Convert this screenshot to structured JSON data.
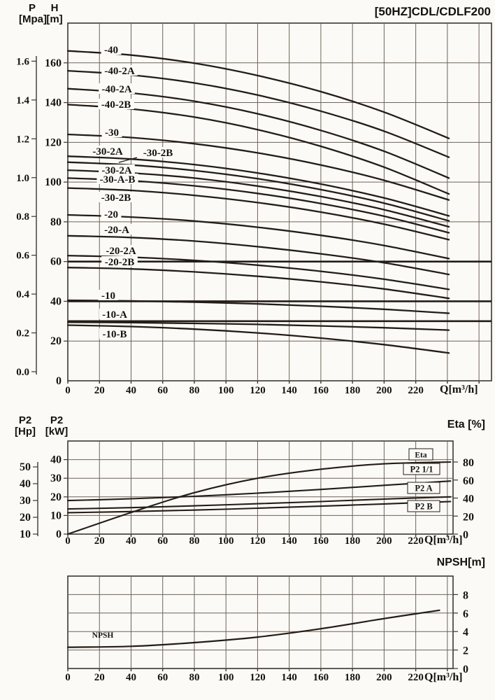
{
  "title": "[50HZ]CDL/CDLF200",
  "axes_headers": {
    "head_left_primary": {
      "sym": "P",
      "unit": "[Mpa]"
    },
    "head_left_secondary": {
      "sym": "H",
      "unit": "[m]"
    },
    "power_left_primary": {
      "sym": "P2",
      "unit": "[Hp]"
    },
    "power_left_secondary": {
      "sym": "P2",
      "unit": "[kW]"
    },
    "power_right_title": "Eta [%]",
    "npsh_right_title": "NPSH[m]",
    "flow_unit": "Q[m³/h]"
  },
  "colors": {
    "curve": "#241d17",
    "grid": "#6e6356",
    "border": "#3d362e",
    "text": "#151210",
    "bg": "#fcfaf7"
  },
  "chart_data": [
    {
      "id": "head",
      "type": "line",
      "title": "[50HZ]CDL/CDLF200",
      "xlabel": "Q[m³/h]",
      "ylabel_left": "H[m]",
      "ylabel_ruler": "P[Mpa]",
      "x_ticks": [
        0,
        20,
        40,
        60,
        80,
        100,
        120,
        140,
        160,
        180,
        200,
        220
      ],
      "x_grid_max": 260,
      "y_ticks": [
        0,
        20,
        40,
        60,
        80,
        100,
        120,
        140,
        160
      ],
      "y_max": 180,
      "p_ruler_ticks": [
        "0.0",
        "0.2",
        "0.4",
        "0.6",
        "0.8",
        "1.0",
        "1.2",
        "1.4",
        "1.6"
      ],
      "flat_lines_H": [
        60,
        40,
        30
      ],
      "q_samples": [
        0,
        40,
        80,
        120,
        160,
        200,
        241
      ],
      "series": [
        {
          "name": "-40",
          "values": [
            166,
            163.9,
            159.8,
            153.6,
            145.5,
            135.2,
            122
          ]
        },
        {
          "name": "-40-2A",
          "values": [
            156,
            153.9,
            149.9,
            143.8,
            135.7,
            125.6,
            112.5
          ]
        },
        {
          "name": "-40-2A",
          "values": [
            147,
            144.8,
            140.7,
            134.4,
            126,
            115.5,
            102
          ]
        },
        {
          "name": "-40-2B",
          "values": [
            139,
            136.8,
            132.7,
            126.4,
            118,
            107.5,
            94
          ]
        },
        {
          "name": "-30",
          "values": [
            124,
            122.4,
            119.3,
            114.7,
            108.6,
            100.9,
            91
          ]
        },
        {
          "name": "-30-2A",
          "values": [
            113,
            111.6,
            108.8,
            104.6,
            99,
            92,
            83
          ]
        },
        {
          "name": "-30-2B",
          "values": [
            110,
            108.6,
            105.8,
            101.7,
            96.2,
            89.4,
            80.5
          ]
        },
        {
          "name": "-30-2A",
          "values": [
            106,
            104.6,
            102,
            98,
            92.7,
            86.1,
            77.5
          ]
        },
        {
          "name": "-30-A-B",
          "values": [
            102,
            100.7,
            98.1,
            94.3,
            89.2,
            82.8,
            74.5
          ]
        },
        {
          "name": "-30-2B",
          "values": [
            97,
            95.8,
            93.3,
            89.7,
            84.9,
            78.8,
            71
          ]
        },
        {
          "name": "-20",
          "values": [
            83.5,
            82.4,
            80.4,
            77.3,
            73.2,
            68.1,
            61.5
          ]
        },
        {
          "name": "-20-A",
          "values": [
            73,
            72.1,
            70.3,
            67.5,
            63.9,
            59.4,
            53.5
          ]
        },
        {
          "name": "-20-2A",
          "values": [
            63,
            62.2,
            60.6,
            58.2,
            55.1,
            51.1,
            46
          ]
        },
        {
          "name": "-20-2B",
          "values": [
            57,
            56.3,
            54.8,
            52.6,
            49.8,
            46.2,
            41.5
          ]
        },
        {
          "name": "-10",
          "values": [
            40.5,
            40.2,
            39.6,
            38.7,
            37.5,
            36,
            34
          ]
        },
        {
          "name": "-10-A",
          "values": [
            29.5,
            29.3,
            28.9,
            28.4,
            27.6,
            26.7,
            25.5
          ]
        },
        {
          "name": "-10-B",
          "values": [
            28,
            27.3,
            26,
            24.1,
            21.5,
            18.2,
            14
          ]
        }
      ]
    },
    {
      "id": "power",
      "type": "line",
      "xlabel": "Q[m³/h]",
      "ylabel_left_kw": "P2[kW]",
      "ylabel_ruler_hp": "P2[Hp]",
      "ylabel_right": "Eta [%]",
      "x_ticks": [
        0,
        20,
        40,
        60,
        80,
        100,
        120,
        140,
        160,
        180,
        200,
        220
      ],
      "x_grid_max": 240,
      "kw_ticks": [
        0,
        10,
        20,
        30,
        40
      ],
      "kw_max": 50,
      "hp_ruler_ticks": [
        "10",
        "20",
        "30",
        "40",
        "50"
      ],
      "eta_ticks": [
        0,
        20,
        40,
        60,
        80
      ],
      "q_samples": [
        0,
        40,
        80,
        120,
        160,
        200,
        242
      ],
      "series": [
        {
          "name": "Eta",
          "axis": "eta",
          "values": [
            0,
            24,
            46,
            62,
            72,
            78,
            80
          ]
        },
        {
          "name": "P2 1/1",
          "axis": "kw",
          "values": [
            18,
            19,
            20.3,
            22,
            24,
            26.2,
            28.5
          ]
        },
        {
          "name": "P2 A",
          "axis": "kw",
          "values": [
            13.5,
            14.2,
            15.2,
            16.3,
            17.5,
            18.8,
            20
          ]
        },
        {
          "name": "P2 B",
          "axis": "kw",
          "values": [
            11.5,
            12.1,
            12.9,
            13.9,
            15,
            16.2,
            17.5
          ]
        }
      ]
    },
    {
      "id": "npsh",
      "type": "line",
      "xlabel": "Q[m³/h]",
      "ylabel_right": "NPSH[m]",
      "x_ticks": [
        0,
        20,
        40,
        60,
        80,
        100,
        120,
        140,
        160,
        180,
        200,
        220
      ],
      "x_grid_max": 240,
      "npsh_ticks": [
        0,
        2,
        4,
        6,
        8
      ],
      "npsh_max": 10,
      "q_samples": [
        0,
        40,
        80,
        120,
        160,
        200,
        235
      ],
      "series": [
        {
          "name": "NPSH",
          "values": [
            2.3,
            2.4,
            2.8,
            3.4,
            4.3,
            5.4,
            6.3
          ]
        }
      ]
    }
  ]
}
